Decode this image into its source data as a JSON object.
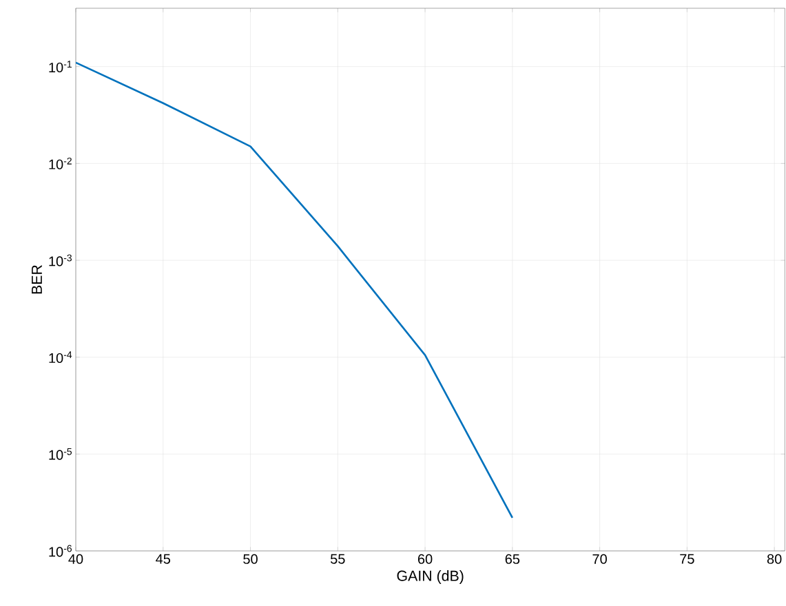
{
  "chart_data": {
    "type": "line",
    "xlabel": "GAIN (dB)",
    "ylabel": "BER",
    "x": [
      40,
      45,
      50,
      55,
      60,
      65
    ],
    "series": [
      {
        "color": "#0072bd",
        "values": [
          0.11,
          0.042,
          0.015,
          0.0014,
          0.000105,
          2.2e-06
        ]
      }
    ],
    "log": "y",
    "grid": true,
    "marker": "none",
    "line_style": "solid",
    "xlim": [
      40,
      80.6
    ],
    "ylim": [
      1e-06,
      0.4
    ],
    "xticks": [
      40,
      45,
      50,
      55,
      60,
      65,
      70,
      75,
      80
    ],
    "yticks": [
      {
        "value": 1e-06,
        "label": "10$^{-6}$"
      },
      {
        "value": 1e-05,
        "label": "10$^{-5}$"
      },
      {
        "value": 0.0001,
        "label": "10$^{-4}$"
      },
      {
        "value": 0.001,
        "label": "10$^{-3}$"
      },
      {
        "value": 0.01,
        "label": "10$^{-2}$"
      },
      {
        "value": 0.1,
        "label": "10$^{-1}$"
      }
    ]
  }
}
